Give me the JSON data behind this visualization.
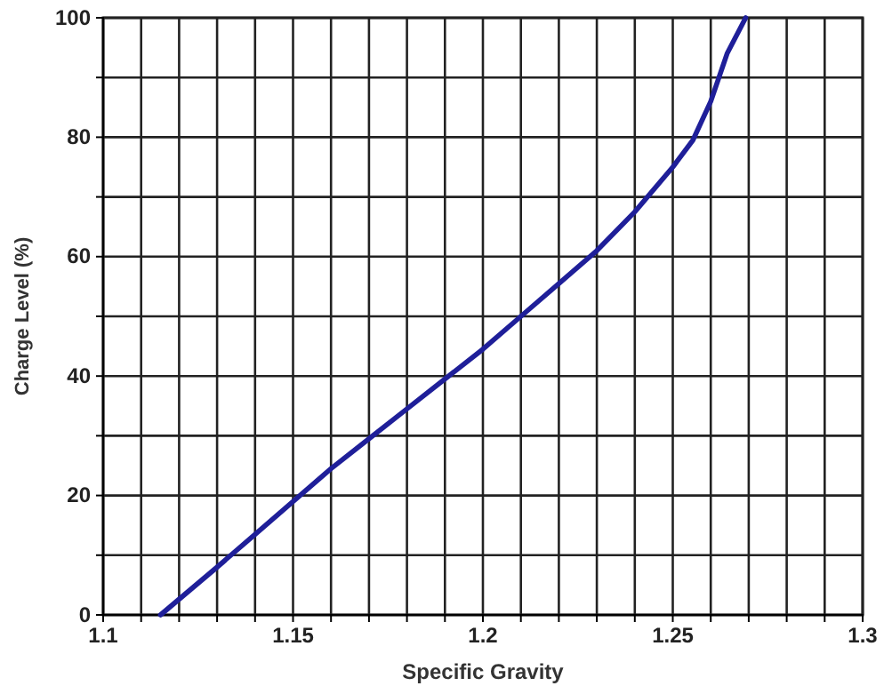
{
  "chart_data": {
    "type": "line",
    "xlabel": "Specific Gravity",
    "ylabel": "Charge Level (%)",
    "x": [
      1.1151,
      1.13,
      1.14,
      1.15,
      1.16,
      1.17,
      1.18,
      1.19,
      1.2,
      1.21,
      1.22,
      1.23,
      1.24,
      1.25,
      1.2553,
      1.26,
      1.2643,
      1.2692
    ],
    "series": [
      {
        "color": "#1f1f99",
        "values": [
          0,
          8,
          13.5,
          19,
          24.5,
          29.5,
          34.5,
          39.5,
          44.5,
          50,
          55.5,
          61,
          67.5,
          75,
          79.5,
          86,
          94,
          100
        ]
      }
    ],
    "xlim": [
      1.1,
      1.3
    ],
    "ylim": [
      0,
      100
    ],
    "xticks": [
      1.1,
      {
        "value": 1.11,
        "label": null
      },
      {
        "value": 1.12,
        "label": null
      },
      {
        "value": 1.13,
        "label": null
      },
      {
        "value": 1.14,
        "label": null
      },
      1.15,
      {
        "value": 1.16,
        "label": null
      },
      {
        "value": 1.17,
        "label": null
      },
      {
        "value": 1.18,
        "label": null
      },
      {
        "value": 1.19,
        "label": null
      },
      1.2,
      {
        "value": 1.21,
        "label": null
      },
      {
        "value": 1.22,
        "label": null
      },
      {
        "value": 1.23,
        "label": null
      },
      {
        "value": 1.24,
        "label": null
      },
      1.25,
      {
        "value": 1.26,
        "label": null
      },
      {
        "value": 1.27,
        "label": null
      },
      {
        "value": 1.28,
        "label": null
      },
      {
        "value": 1.29,
        "label": null
      },
      1.3
    ],
    "yticks": [
      0,
      {
        "value": 10,
        "label": null
      },
      20,
      {
        "value": 30,
        "label": null
      },
      40,
      {
        "value": 50,
        "label": null
      },
      60,
      {
        "value": 70,
        "label": null
      },
      80,
      {
        "value": 90,
        "label": null
      },
      100
    ],
    "grid": true,
    "line_style": "solid",
    "marker": "none"
  }
}
